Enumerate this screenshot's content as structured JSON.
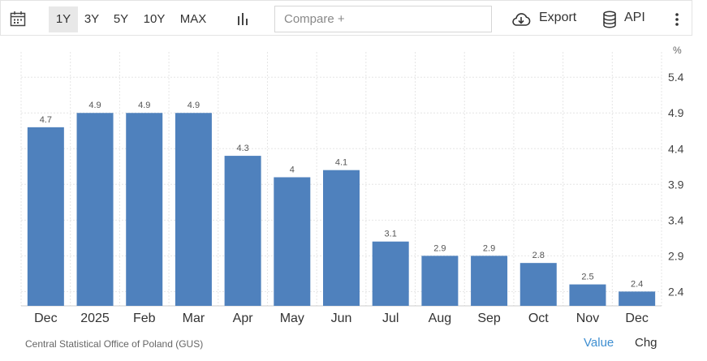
{
  "toolbar": {
    "ranges": [
      {
        "label": "1Y",
        "active": true
      },
      {
        "label": "3Y",
        "active": false
      },
      {
        "label": "5Y",
        "active": false
      },
      {
        "label": "10Y",
        "active": false
      },
      {
        "label": "MAX",
        "active": false
      }
    ],
    "compare_placeholder": "Compare +",
    "export_label": "Export",
    "api_label": "API",
    "icons": [
      "calendar-icon",
      "bar-chart-icon",
      "cloud-download-icon",
      "database-icon",
      "more-vertical-icon"
    ]
  },
  "footer": {
    "source": "Central Statistical Office of Poland (GUS)",
    "value_label": "Value",
    "chg_label": "Chg"
  },
  "colors": {
    "bar": "#4f81bd",
    "active_range_bg": "#e8e8e8",
    "value_link": "#3f8fd1"
  },
  "chart_data": {
    "type": "bar",
    "categories": [
      "Dec",
      "2025",
      "Feb",
      "Mar",
      "Apr",
      "May",
      "Jun",
      "Jul",
      "Aug",
      "Sep",
      "Oct",
      "Nov",
      "Dec"
    ],
    "values": [
      4.7,
      4.9,
      4.9,
      4.9,
      4.3,
      4,
      4.1,
      3.1,
      2.9,
      2.9,
      2.8,
      2.5,
      2.4
    ],
    "data_labels": [
      "4.7",
      "4.9",
      "4.9",
      "4.9",
      "4.3",
      "4",
      "4.1",
      "3.1",
      "2.9",
      "2.9",
      "2.8",
      "2.5",
      "2.4"
    ],
    "y_unit": "%",
    "y_ticks": [
      2.4,
      2.9,
      3.4,
      3.9,
      4.4,
      4.9,
      5.4
    ],
    "y_tick_labels": [
      "2.4",
      "2.9",
      "3.4",
      "3.9",
      "4.4",
      "4.9",
      "5.4"
    ],
    "ylim": [
      2.2,
      5.55
    ],
    "grid": true,
    "y_axis_position": "right"
  }
}
